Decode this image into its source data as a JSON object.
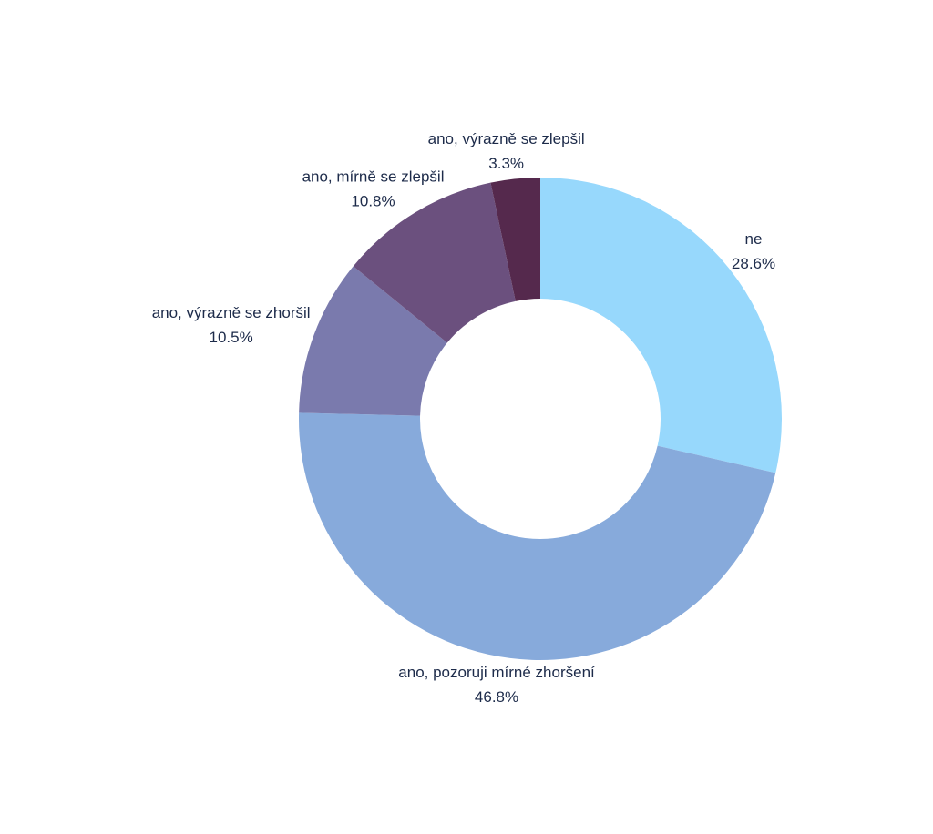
{
  "chart_data": {
    "type": "donut",
    "categories": [
      "ne",
      "ano, pozoruji mírné zhoršení",
      "ano, výrazně se zhoršil",
      "ano, mírně se zlepšil",
      "ano, výrazně se zlepšil"
    ],
    "values": [
      28.6,
      46.8,
      10.5,
      10.8,
      3.3
    ],
    "value_labels": [
      "28.6%",
      "46.8%",
      "10.5%",
      "10.8%",
      "3.3%"
    ],
    "colors": [
      "#97d8fc",
      "#87aadb",
      "#7a7aad",
      "#6b507e",
      "#55294d"
    ]
  }
}
